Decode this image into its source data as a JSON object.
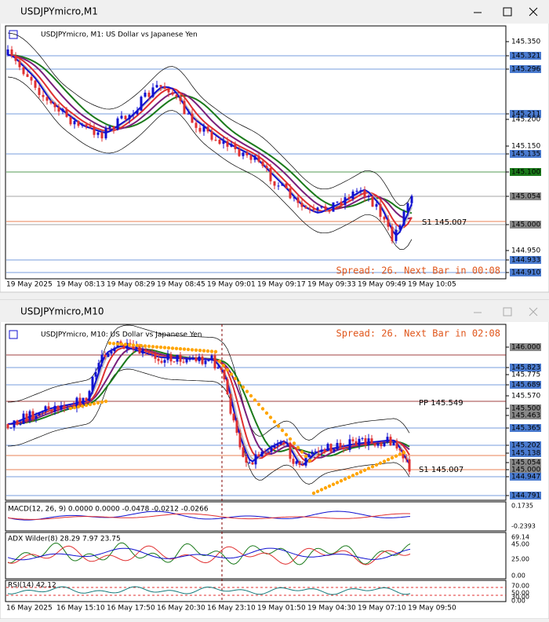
{
  "windows": [
    {
      "title": "USDJPYmicro,M1",
      "info": "USDJPYmicro, M1:  US Dollar vs Japanese Yen",
      "status": "Spread: 26. Next Bar in 00:08",
      "levels": [
        "S1 145.007"
      ],
      "price_labels": [
        "145.350",
        "145.321",
        "145.296",
        "145.211",
        "145.200",
        "145.150",
        "145.135",
        "145.100",
        "145.054",
        "145.000",
        "144.950",
        "144.933",
        "144.910"
      ],
      "time_labels": [
        "19 May 2025",
        "19 May 08:13",
        "19 May 08:29",
        "19 May 08:45",
        "19 May 09:01",
        "19 May 09:17",
        "19 May 09:33",
        "19 May 09:49",
        "19 May 10:05"
      ]
    },
    {
      "title": "USDJPYmicro,M10",
      "info": "USDJPYmicro, M10:  US Dollar vs Japanese Yen",
      "status": "Spread: 26. Next Bar in 02:08",
      "levels": [
        "PP 145.549",
        "S1 145.007"
      ],
      "price_labels": [
        "146.000",
        "145.823",
        "145.775",
        "145.689",
        "145.570",
        "145.500",
        "145.463",
        "145.365",
        "145.202",
        "145.138",
        "145.054",
        "145.000",
        "144.947",
        "144.791"
      ],
      "time_labels": [
        "16 May 2025",
        "16 May 15:10",
        "16 May 17:50",
        "16 May 20:30",
        "16 May 23:10",
        "19 May 01:50",
        "19 May 04:30",
        "19 May 07:10",
        "19 May 09:50"
      ],
      "indicators": [
        {
          "label": "MACD(12, 26, 9) 0.0000 0.0000 -0.0478 -0.0212 -0.0266",
          "ticks": [
            "0.1735",
            "-0.2393"
          ]
        },
        {
          "label": "ADX Wilder(8) 28.29 7.97 23.75",
          "ticks": [
            "69.14",
            "45.00",
            "25.00",
            "0.00"
          ]
        },
        {
          "label": "RSI(14) 42.12",
          "ticks": [
            "70.00",
            "50.00",
            "30.00",
            "0.00"
          ]
        }
      ]
    }
  ]
}
